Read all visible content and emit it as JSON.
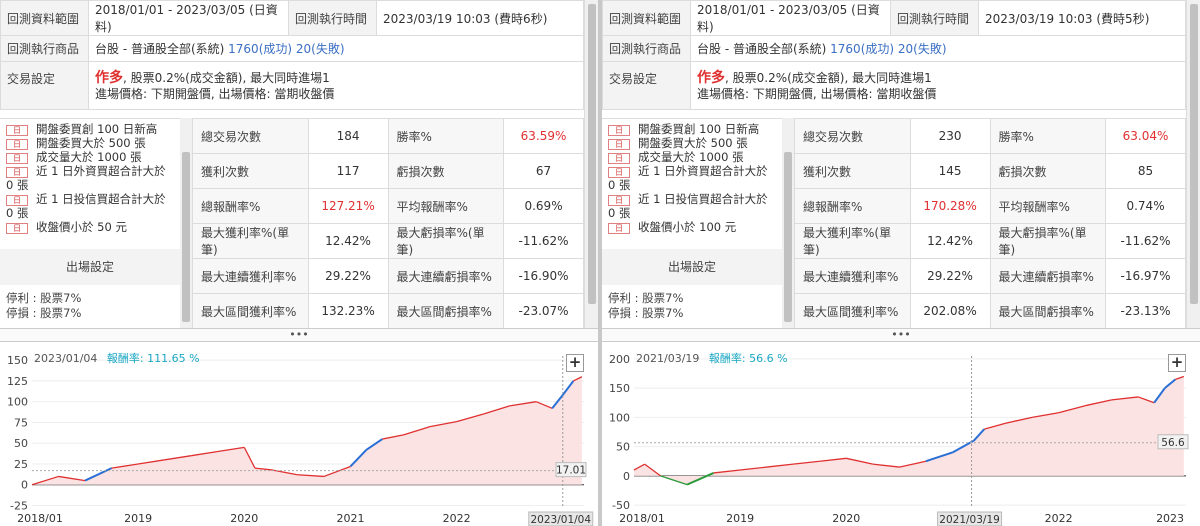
{
  "panels": [
    {
      "info": {
        "range_label": "回測資料範圍",
        "range_value": "2018/01/01 - 2023/03/05 (日資料)",
        "exec_time_label": "回測執行時間",
        "exec_time_value": "2023/03/19 10:03 (費時6秒)",
        "product_label": "回測執行商品",
        "product_prefix": "台股 - 普通股全部(系統)",
        "product_success": "1760(成功)",
        "product_fail": "20(失敗)",
        "trade_label": "交易設定",
        "trade_direction": "作多",
        "trade_line1": ", 股票0.2%(成交金額), 最大同時進場1",
        "trade_line2": "進場價格: 下期開盤價, 出場價格: 當期收盤價"
      },
      "conditions": {
        "tag": "日",
        "items": [
          {
            "text": "開盤委買創 100 日新高",
            "tagged": true
          },
          {
            "text": "開盤委買大於 500 張",
            "tagged": true
          },
          {
            "text": "成交量大於 1000 張",
            "tagged": true
          },
          {
            "text": "近 1 日外資買超合計大於",
            "tagged": true
          },
          {
            "text": "0 張",
            "tagged": false
          },
          {
            "text": "近 1 日投信買超合計大於",
            "tagged": true
          },
          {
            "text": "0 張",
            "tagged": false
          },
          {
            "text": "收盤價小於 50 元",
            "tagged": true
          }
        ],
        "exit_header": "出場設定",
        "exit_lines": [
          "停利 : 股票7%",
          "停損 : 股票7%"
        ]
      },
      "stats": [
        [
          {
            "k": "總交易次數",
            "v": "184"
          },
          {
            "k": "勝率%",
            "v": "63.59%",
            "red": true
          }
        ],
        [
          {
            "k": "獲利次數",
            "v": "117"
          },
          {
            "k": "虧損次數",
            "v": "67"
          }
        ],
        [
          {
            "k": "總報酬率%",
            "v": "127.21%",
            "red": true
          },
          {
            "k": "平均報酬率%",
            "v": "0.69%"
          }
        ],
        [
          {
            "k": "最大獲利率%(單筆)",
            "v": "12.42%"
          },
          {
            "k": "最大虧損率%(單筆)",
            "v": "-11.62%"
          }
        ],
        [
          {
            "k": "最大連續獲利率%",
            "v": "29.22%"
          },
          {
            "k": "最大連續虧損率%",
            "v": "-16.90%"
          }
        ],
        [
          {
            "k": "最大區間獲利率%",
            "v": "132.23%"
          },
          {
            "k": "最大區間虧損率%",
            "v": "-23.07%"
          }
        ]
      ],
      "divider_dots": "•••",
      "chart": {
        "cursor_date": "2023/01/04",
        "return_label": "報酬率:",
        "return_value": "111.65 %",
        "plus": "+",
        "cursor_box_label": "2023/01/04",
        "last_value_label": "17.01"
      }
    },
    {
      "info": {
        "range_label": "回測資料範圍",
        "range_value": "2018/01/01 - 2023/03/05 (日資料)",
        "exec_time_label": "回測執行時間",
        "exec_time_value": "2023/03/19 10:03 (費時5秒)",
        "product_label": "回測執行商品",
        "product_prefix": "台股 - 普通股全部(系統)",
        "product_success": "1760(成功)",
        "product_fail": "20(失敗)",
        "trade_label": "交易設定",
        "trade_direction": "作多",
        "trade_line1": ", 股票0.2%(成交金額), 最大同時進場1",
        "trade_line2": "進場價格: 下期開盤價, 出場價格: 當期收盤價"
      },
      "conditions": {
        "tag": "日",
        "items": [
          {
            "text": "開盤委買創 100 日新高",
            "tagged": true
          },
          {
            "text": "開盤委買大於 500 張",
            "tagged": true
          },
          {
            "text": "成交量大於 1000 張",
            "tagged": true
          },
          {
            "text": "近 1 日外資買超合計大於",
            "tagged": true
          },
          {
            "text": "0 張",
            "tagged": false
          },
          {
            "text": "近 1 日投信買超合計大於",
            "tagged": true
          },
          {
            "text": "0 張",
            "tagged": false
          },
          {
            "text": "收盤價小於 100 元",
            "tagged": true
          }
        ],
        "exit_header": "出場設定",
        "exit_lines": [
          "停利 : 股票7%",
          "停損 : 股票7%"
        ]
      },
      "stats": [
        [
          {
            "k": "總交易次數",
            "v": "230"
          },
          {
            "k": "勝率%",
            "v": "63.04%",
            "red": true
          }
        ],
        [
          {
            "k": "獲利次數",
            "v": "145"
          },
          {
            "k": "虧損次數",
            "v": "85"
          }
        ],
        [
          {
            "k": "總報酬率%",
            "v": "170.28%",
            "red": true
          },
          {
            "k": "平均報酬率%",
            "v": "0.74%"
          }
        ],
        [
          {
            "k": "最大獲利率%(單筆)",
            "v": "12.42%"
          },
          {
            "k": "最大虧損率%(單筆)",
            "v": "-11.62%"
          }
        ],
        [
          {
            "k": "最大連續獲利率%",
            "v": "29.22%"
          },
          {
            "k": "最大連續虧損率%",
            "v": "-16.97%"
          }
        ],
        [
          {
            "k": "最大區間獲利率%",
            "v": "202.08%"
          },
          {
            "k": "最大區間虧損率%",
            "v": "-23.13%"
          }
        ]
      ],
      "divider_dots": "•••",
      "chart": {
        "cursor_date": "2021/03/19",
        "return_label": "報酬率:",
        "return_value": "56.6 %",
        "plus": "+",
        "cursor_box_label": "2021/03/19",
        "last_value_label": "56.6"
      }
    }
  ],
  "chart_data": [
    {
      "type": "area",
      "x_labels": [
        "2018/01",
        "2019",
        "2020",
        "2021",
        "2022",
        "2023"
      ],
      "y_ticks": [
        150,
        125,
        100,
        75,
        50,
        25,
        0,
        -25
      ],
      "ylim": [
        -28,
        155
      ],
      "x": [
        2018.0,
        2018.25,
        2018.5,
        2018.75,
        2019.0,
        2019.25,
        2019.5,
        2019.75,
        2020.0,
        2020.1,
        2020.25,
        2020.5,
        2020.75,
        2021.0,
        2021.15,
        2021.3,
        2021.5,
        2021.75,
        2022.0,
        2022.25,
        2022.5,
        2022.75,
        2022.9,
        2023.0,
        2023.1,
        2023.18
      ],
      "y": [
        0,
        10,
        5,
        20,
        25,
        30,
        35,
        40,
        45,
        20,
        18,
        12,
        10,
        22,
        42,
        55,
        60,
        70,
        76,
        85,
        95,
        100,
        92,
        108,
        125,
        130
      ],
      "colors": {
        "line": "#e03030",
        "fill": "#fbe3e3",
        "gain": "#2a6fd6",
        "loss": "#2a9a3a"
      }
    },
    {
      "type": "area",
      "x_labels": [
        "2018/01",
        "2019",
        "2020",
        "2021",
        "2022",
        "2023"
      ],
      "y_ticks": [
        200,
        150,
        100,
        50,
        0,
        -50
      ],
      "ylim": [
        -55,
        205
      ],
      "x": [
        2018.0,
        2018.1,
        2018.25,
        2018.5,
        2018.75,
        2019.0,
        2019.25,
        2019.5,
        2019.75,
        2020.0,
        2020.25,
        2020.5,
        2020.75,
        2021.0,
        2021.2,
        2021.3,
        2021.5,
        2021.75,
        2022.0,
        2022.25,
        2022.5,
        2022.75,
        2022.9,
        2023.0,
        2023.1,
        2023.18
      ],
      "y": [
        10,
        20,
        0,
        -15,
        5,
        10,
        15,
        20,
        25,
        30,
        20,
        15,
        25,
        40,
        60,
        80,
        90,
        100,
        108,
        120,
        130,
        135,
        125,
        150,
        165,
        170
      ],
      "colors": {
        "line": "#e03030",
        "fill": "#fbe3e3",
        "gain": "#2a6fd6",
        "loss": "#2a9a3a"
      }
    }
  ]
}
